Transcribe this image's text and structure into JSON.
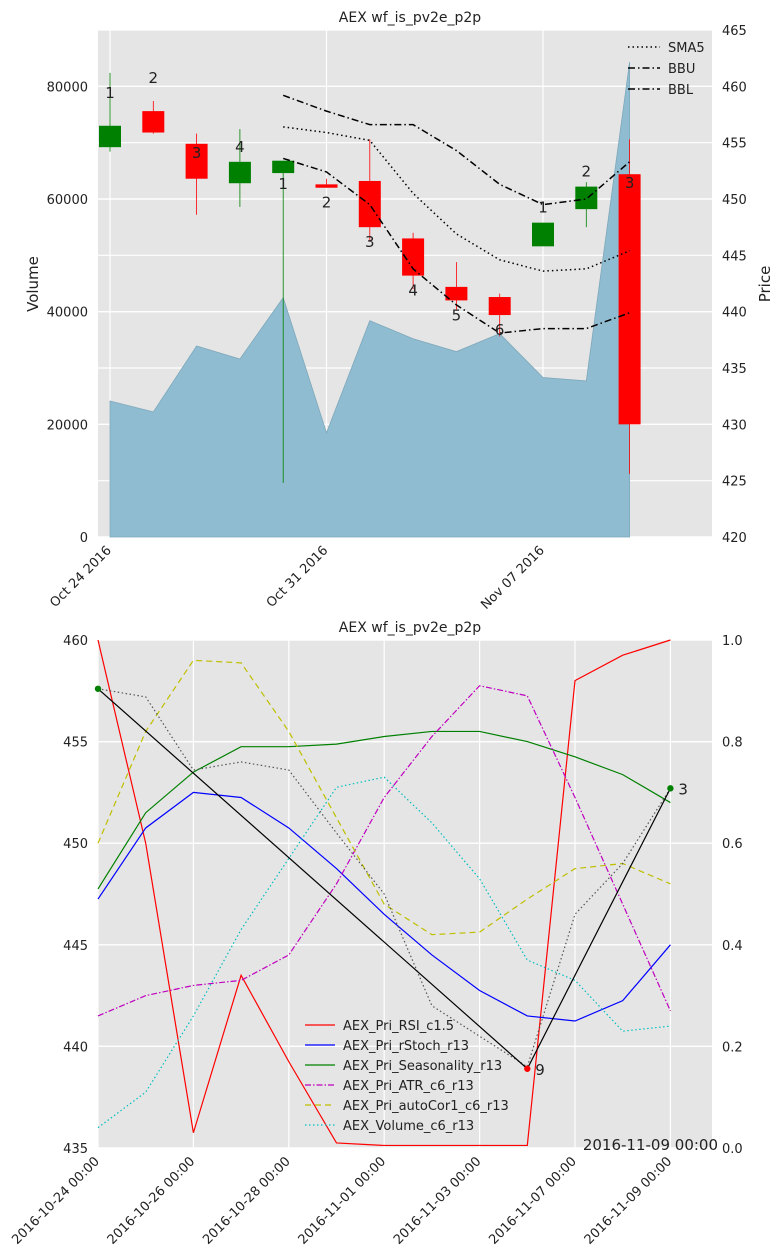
{
  "chart_data": [
    {
      "type": "candlestick",
      "title": "AEX wf_is_pv2e_p2p",
      "ylabel_left": "Volume",
      "ylabel_right": "Price",
      "ylim_left": [
        0,
        90000
      ],
      "ylim_right": [
        420,
        465
      ],
      "yticks_left": [
        "0",
        "20000",
        "40000",
        "60000",
        "80000"
      ],
      "yticks_right": [
        "420",
        "425",
        "430",
        "435",
        "440",
        "445",
        "450",
        "455",
        "460",
        "465"
      ],
      "xticks": [
        "Oct 24 2016",
        "Oct 31 2016",
        "Nov 07 2016"
      ],
      "legend": [
        "SMA5",
        "BBU",
        "BBL"
      ],
      "grid": true,
      "dates": [
        "2016-10-24",
        "2016-10-25",
        "2016-10-26",
        "2016-10-27",
        "2016-10-28",
        "2016-10-31",
        "2016-11-01",
        "2016-11-02",
        "2016-11-03",
        "2016-11-04",
        "2016-11-07",
        "2016-11-08",
        "2016-11-09"
      ],
      "open": [
        454.6,
        457.8,
        454.9,
        451.4,
        452.3,
        451.3,
        451.6,
        446.5,
        442.2,
        441.3,
        445.8,
        449.1,
        452.2
      ],
      "high": [
        461.2,
        458.7,
        455.8,
        456.2,
        453.2,
        451.8,
        455.3,
        447.0,
        444.4,
        441.6,
        447.5,
        451.5,
        455.3
      ],
      "low": [
        454.2,
        455.8,
        448.6,
        449.3,
        424.8,
        451.0,
        446.2,
        442.0,
        440.2,
        437.8,
        446.1,
        447.5,
        425.6
      ],
      "close": [
        456.5,
        455.9,
        451.8,
        453.3,
        453.4,
        451.0,
        447.5,
        443.2,
        441.0,
        439.7,
        447.9,
        451.1,
        430.0
      ],
      "volume": [
        24150,
        22200,
        33900,
        31600,
        42500,
        18500,
        38400,
        35200,
        32900,
        36100,
        28300,
        27700,
        84300
      ],
      "candle_labels": [
        "1",
        "2",
        "3",
        "4",
        "1",
        "2",
        "3",
        "4",
        "5",
        "6",
        "1",
        "2",
        "3"
      ],
      "sma5": [
        null,
        null,
        null,
        null,
        456.4,
        455.9,
        455.2,
        450.5,
        446.9,
        444.6,
        443.6,
        443.8,
        445.4
      ],
      "bbu": [
        null,
        null,
        null,
        null,
        459.2,
        457.8,
        456.6,
        456.6,
        454.3,
        451.3,
        449.5,
        450.0,
        453.3
      ],
      "bbl": [
        null,
        null,
        null,
        null,
        453.6,
        452.4,
        449.5,
        443.8,
        440.6,
        438.1,
        438.5,
        438.5,
        439.9
      ]
    },
    {
      "type": "line",
      "title": "AEX wf_is_pv2e_p2p",
      "ylim_left": [
        435,
        460
      ],
      "ylim_right": [
        0.0,
        1.0
      ],
      "yticks_left": [
        "435",
        "440",
        "445",
        "450",
        "455",
        "460"
      ],
      "yticks_right": [
        "0.0",
        "0.2",
        "0.4",
        "0.6",
        "0.8",
        "1.0"
      ],
      "xticks": [
        "2016-10-24 00:00",
        "2016-10-26 00:00",
        "2016-10-28 00:00",
        "2016-11-01 00:00",
        "2016-11-03 00:00",
        "2016-11-07 00:00",
        "2016-11-09 00:00"
      ],
      "cursor_label": "2016-11-09 00:00",
      "grid": true,
      "legend_position": "lower-center",
      "series": [
        {
          "name": "AEX_Pri_RSI_c1.5",
          "color": "#ff0000",
          "dash": "solid",
          "values": [
            1.0,
            0.6,
            0.03,
            0.34,
            0.17,
            0.01,
            0.005,
            0.005,
            0.005,
            0.005,
            0.92,
            0.97,
            1.0
          ]
        },
        {
          "name": "AEX_Pri_rStoch_r13",
          "color": "#0000ff",
          "dash": "solid",
          "values": [
            0.49,
            0.63,
            0.7,
            0.69,
            0.63,
            0.55,
            0.46,
            0.38,
            0.31,
            0.26,
            0.25,
            0.29,
            0.4
          ]
        },
        {
          "name": "AEX_Pri_Seasonality_r13",
          "color": "#008000",
          "dash": "solid",
          "values": [
            0.51,
            0.66,
            0.74,
            0.79,
            0.79,
            0.795,
            0.81,
            0.82,
            0.82,
            0.8,
            0.77,
            0.735,
            0.68
          ]
        },
        {
          "name": "AEX_Pri_ATR_c6_r13",
          "color": "#bf00bf",
          "dash": "dashdot",
          "values": [
            0.26,
            0.3,
            0.32,
            0.33,
            0.38,
            0.52,
            0.69,
            0.81,
            0.91,
            0.89,
            0.69,
            0.48,
            0.27
          ]
        },
        {
          "name": "AEX_Pri_autoCor1_c6_r13",
          "color": "#bfbf00",
          "dash": "dashed",
          "values": [
            0.6,
            0.82,
            0.96,
            0.955,
            0.82,
            0.65,
            0.48,
            0.42,
            0.425,
            0.49,
            0.55,
            0.56,
            0.52
          ]
        },
        {
          "name": "AEX_Volume_c6_r13",
          "color": "#00bfbf",
          "dash": "dotted",
          "values": [
            0.04,
            0.11,
            0.26,
            0.43,
            0.57,
            0.71,
            0.73,
            0.64,
            0.53,
            0.37,
            0.33,
            0.23,
            0.24
          ]
        },
        {
          "name": "",
          "color": "#555555",
          "dash": "dotted",
          "axis": "left",
          "values": [
            457.6,
            457.2,
            453.6,
            454.0,
            453.6,
            450.5,
            447.5,
            442.0,
            440.5,
            439.0,
            446.5,
            449.0,
            452.7
          ]
        }
      ],
      "zigzag": {
        "color": "#000000",
        "points": [
          {
            "x": 0,
            "y": 457.6,
            "label": "",
            "color": "#008000"
          },
          {
            "x": 9,
            "y": 438.9,
            "label": "9",
            "color": "#ff0000"
          },
          {
            "x": 12,
            "y": 452.7,
            "label": "3",
            "color": "#008000"
          }
        ]
      }
    }
  ]
}
